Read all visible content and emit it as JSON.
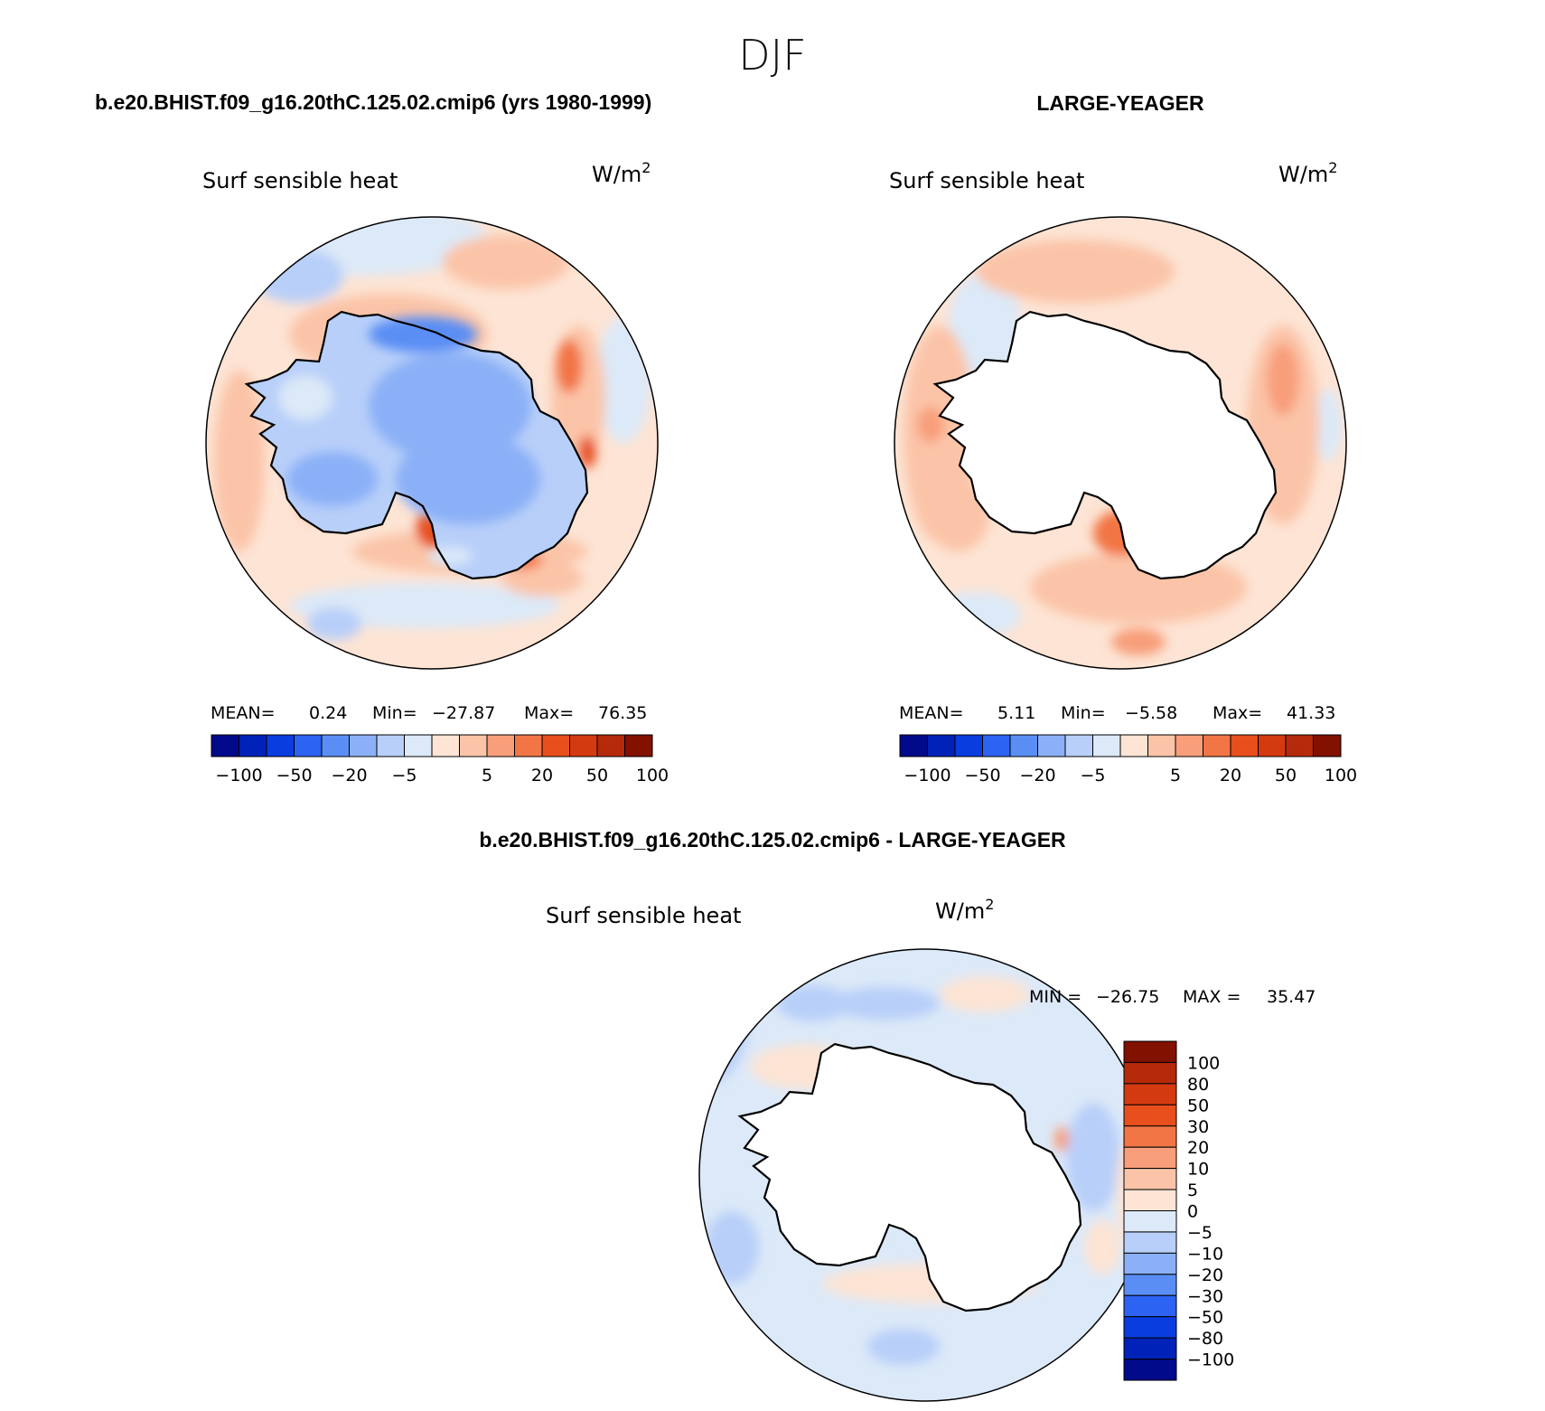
{
  "title": "DJF",
  "colors": {
    "ocean_diff_bg": "#dce9f8",
    "coast": "#000000",
    "palette": [
      "#000a8a",
      "#0022b8",
      "#0a3de0",
      "#2d63f2",
      "#5a8ef4",
      "#8bb0f7",
      "#b8cff9",
      "#dce9f8",
      "#fde4d4",
      "#fbc4a8",
      "#f89e7a",
      "#f27545",
      "#e84f1c",
      "#d43a10",
      "#b52a0a",
      "#821100"
    ]
  },
  "panels": [
    {
      "name": "model",
      "header": "b.e20.BHIST.f09_g16.20thC.125.02.cmip6 (yrs 1980-1999)",
      "variable": "Surf sensible heat",
      "units_base": "W/m",
      "units_exp": "2",
      "stats": {
        "mean_label": "MEAN=",
        "mean": "0.24",
        "min_label": "Min=",
        "min": "−27.87",
        "max_label": "Max=",
        "max": "76.35"
      }
    },
    {
      "name": "obs",
      "header": "LARGE-YEAGER",
      "variable": "Surf sensible heat",
      "units_base": "W/m",
      "units_exp": "2",
      "stats": {
        "mean_label": "MEAN=",
        "mean": "5.11",
        "min_label": "Min=",
        "min": "−5.58",
        "max_label": "Max=",
        "max": "41.33"
      }
    },
    {
      "name": "difference",
      "header": "b.e20.BHIST.f09_g16.20thC.125.02.cmip6 - LARGE-YEAGER",
      "variable": "Surf sensible heat",
      "units_base": "W/m",
      "units_exp": "2",
      "minmax": {
        "min_label": "MIN =",
        "min": "−26.75",
        "max_label": "MAX =",
        "max": "35.47"
      }
    }
  ],
  "colorbar_horizontal": {
    "labels": [
      "−100",
      "−50",
      "−20",
      "−5",
      "5",
      "20",
      "50",
      "100"
    ]
  },
  "colorbar_vertical": {
    "labels": [
      "100",
      "80",
      "50",
      "30",
      "20",
      "10",
      "5",
      "0",
      "−5",
      "−10",
      "−20",
      "−30",
      "−50",
      "−80",
      "−100"
    ]
  },
  "chart_data": {
    "type": "heatmap",
    "projection": "south-polar stereographic",
    "season": "DJF",
    "variable": "Surf sensible heat",
    "units": "W/m2",
    "contour_levels_top": [
      -100,
      -80,
      -50,
      -30,
      -20,
      -10,
      -5,
      0,
      5,
      10,
      20,
      30,
      50,
      80,
      100
    ],
    "contour_levels_diff": [
      -100,
      -80,
      -50,
      -30,
      -20,
      -10,
      -5,
      0,
      5,
      10,
      20,
      30,
      50,
      80,
      100
    ],
    "panels": [
      {
        "name": "b.e20.BHIST.f09_g16.20thC.125.02.cmip6 (yrs 1980-1999)",
        "mean": 0.24,
        "min": -27.87,
        "max": 76.35
      },
      {
        "name": "LARGE-YEAGER",
        "mean": 5.11,
        "min": -5.58,
        "max": 41.33
      },
      {
        "name": "b.e20.BHIST.f09_g16.20thC.125.02.cmip6 - LARGE-YEAGER",
        "min": -26.75,
        "max": 35.47
      }
    ]
  }
}
